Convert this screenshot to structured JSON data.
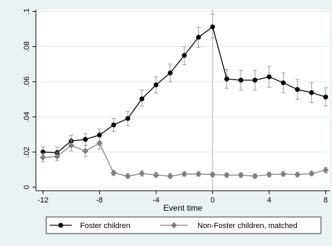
{
  "chart_data": {
    "type": "line",
    "title": "",
    "xlabel": "Event time",
    "ylabel": "",
    "x": [
      -12,
      -11,
      -10,
      -9,
      -8,
      -7,
      -6,
      -5,
      -4,
      -3,
      -2,
      -1,
      0,
      1,
      2,
      3,
      4,
      5,
      6,
      7,
      8
    ],
    "xlim": [
      -12.5,
      8.3
    ],
    "ylim": [
      -0.002,
      0.101
    ],
    "xticks": [
      -12,
      -8,
      -4,
      0,
      4,
      8
    ],
    "xtick_labels": [
      "-12",
      "-8",
      "-4",
      "0",
      "4",
      "8"
    ],
    "yticks": [
      0,
      0.02,
      0.04,
      0.06,
      0.08,
      0.1
    ],
    "ytick_labels": [
      "0",
      ".02",
      ".04",
      ".06",
      ".08",
      ".1"
    ],
    "grid": "horizontal",
    "reference_line_x": 0,
    "legend_position": "bottom",
    "series": [
      {
        "name": "Foster children",
        "color": "#000000",
        "marker": "circle",
        "values": [
          0.02,
          0.0197,
          0.0263,
          0.0272,
          0.0297,
          0.0354,
          0.0391,
          0.0503,
          0.0582,
          0.065,
          0.075,
          0.0853,
          0.0912,
          0.0616,
          0.0609,
          0.0609,
          0.0628,
          0.0594,
          0.0556,
          0.0538,
          0.0513
        ],
        "ci_low": [
          0.017,
          0.0167,
          0.023,
          0.0238,
          0.0262,
          0.0316,
          0.035,
          0.046,
          0.0535,
          0.06,
          0.0697,
          0.0796,
          0.085,
          0.0562,
          0.0553,
          0.0553,
          0.0569,
          0.0538,
          0.05,
          0.0481,
          0.0463
        ],
        "ci_high": [
          0.0228,
          0.0228,
          0.0297,
          0.0306,
          0.0331,
          0.0391,
          0.0431,
          0.0553,
          0.0628,
          0.07,
          0.08,
          0.0909,
          0.0984,
          0.0669,
          0.0666,
          0.0666,
          0.0688,
          0.065,
          0.0613,
          0.0594,
          0.0566
        ]
      },
      {
        "name": "Non-Foster children, matched",
        "color": "#7f7f7f",
        "marker": "diamond",
        "values": [
          0.0169,
          0.0175,
          0.0238,
          0.0206,
          0.025,
          0.0081,
          0.0063,
          0.0078,
          0.0069,
          0.0063,
          0.0075,
          0.0075,
          0.0072,
          0.0069,
          0.0069,
          0.0063,
          0.0072,
          0.0075,
          0.0072,
          0.0078,
          0.0097
        ],
        "ci_low": [
          0.0144,
          0.015,
          0.0206,
          0.0175,
          0.0216,
          0.0066,
          0.005,
          0.0063,
          0.0056,
          0.005,
          0.0063,
          0.0063,
          0.0059,
          0.0056,
          0.0056,
          0.005,
          0.0059,
          0.0063,
          0.0059,
          0.0066,
          0.0081
        ],
        "ci_high": [
          0.0194,
          0.02,
          0.0269,
          0.0238,
          0.0284,
          0.0097,
          0.0078,
          0.0094,
          0.0084,
          0.0078,
          0.0088,
          0.0088,
          0.0084,
          0.0081,
          0.0081,
          0.0075,
          0.0084,
          0.0088,
          0.0084,
          0.0091,
          0.0113
        ]
      }
    ]
  }
}
